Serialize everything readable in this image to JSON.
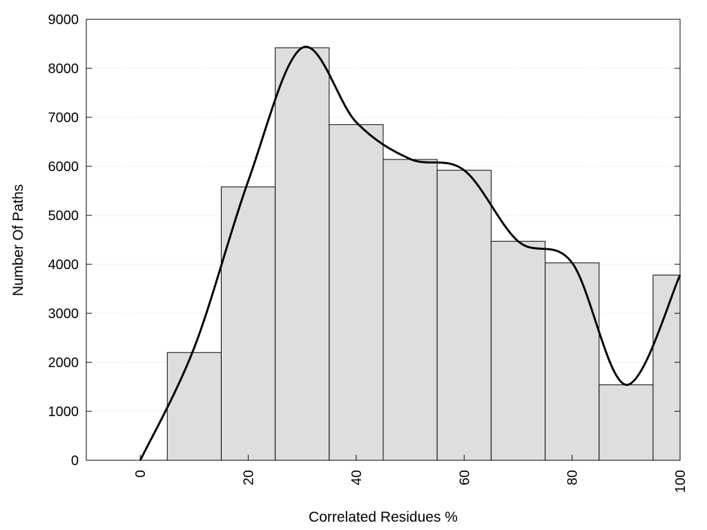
{
  "chart_data": {
    "type": "bar",
    "xlabel": "Correlated Residues %",
    "ylabel": "Number Of Paths",
    "xlim": [
      -10,
      100
    ],
    "ylim": [
      0,
      9000
    ],
    "x_ticks": [
      0,
      20,
      40,
      60,
      80,
      100
    ],
    "y_ticks": [
      0,
      1000,
      2000,
      3000,
      4000,
      5000,
      6000,
      7000,
      8000,
      9000
    ],
    "grid": "horizontal-dotted",
    "bin_width": 10,
    "bars": [
      {
        "x": 10,
        "value": 2200
      },
      {
        "x": 20,
        "value": 5580
      },
      {
        "x": 30,
        "value": 8420
      },
      {
        "x": 40,
        "value": 6850
      },
      {
        "x": 50,
        "value": 6140
      },
      {
        "x": 60,
        "value": 5920
      },
      {
        "x": 70,
        "value": 4470
      },
      {
        "x": 80,
        "value": 4030
      },
      {
        "x": 90,
        "value": 1540
      },
      {
        "x": 100,
        "value": 3780
      }
    ],
    "curve": {
      "x": [
        0,
        10,
        20,
        30,
        40,
        50,
        60,
        70,
        80,
        90,
        100
      ],
      "y": [
        0,
        2300,
        5700,
        8420,
        6900,
        6150,
        5920,
        4470,
        4030,
        1540,
        3780
      ]
    },
    "colors": {
      "bar_fill": "#dedede",
      "bar_stroke": "#000000",
      "curve": "#000000"
    }
  }
}
